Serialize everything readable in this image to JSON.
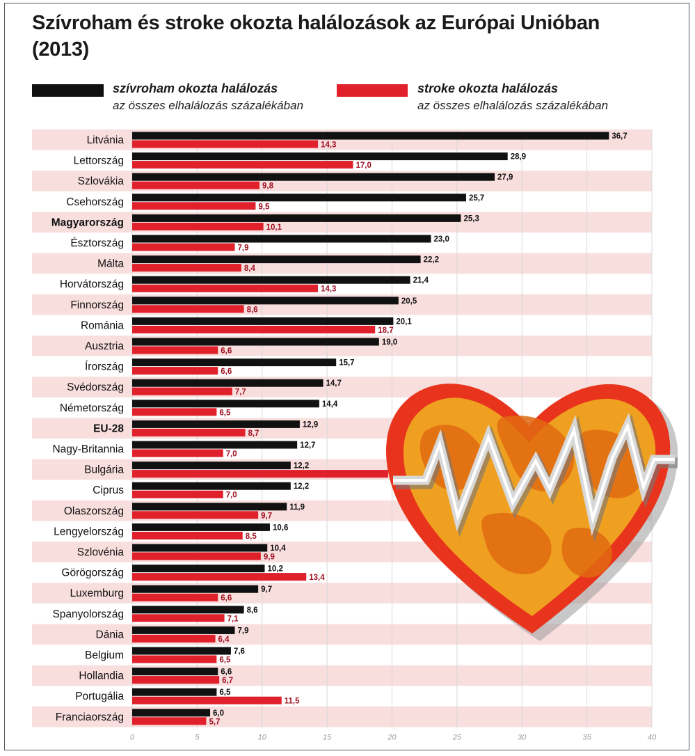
{
  "title": "Szívroham és stroke okozta halálozások az Európai Unióban (2013)",
  "legend": {
    "heart_main": "szívroham okozta halálozás",
    "heart_sub": "az összes elhalálozás százalékában",
    "stroke_main": "stroke okozta halálozás",
    "stroke_sub": "az összes elhalálozás százalékában"
  },
  "colors": {
    "heart": "#111111",
    "stroke": "#e0202a",
    "band": "#f9dede",
    "stroke_label": "#a01020"
  },
  "chart_data": {
    "type": "bar",
    "orientation": "horizontal",
    "title": "Szívroham és stroke okozta halálozások az Európai Unióban (2013)",
    "categories": [
      "Litvánia",
      "Lettország",
      "Szlovákia",
      "Csehország",
      "Magyarország",
      "Észtország",
      "Málta",
      "Horvátország",
      "Finnország",
      "Románia",
      "Ausztria",
      "Írország",
      "Svédország",
      "Németország",
      "EU-28",
      "Nagy-Britannia",
      "Bulgária",
      "Ciprus",
      "Olaszország",
      "Lengyelország",
      "Szlovénia",
      "Görögország",
      "Luxemburg",
      "Spanyolország",
      "Dánia",
      "Belgium",
      "Hollandia",
      "Portugália",
      "Franciaország"
    ],
    "bold_categories": [
      "Magyarország",
      "EU-28"
    ],
    "series": [
      {
        "name": "szívroham okozta halálozás",
        "values": [
          36.7,
          28.9,
          27.9,
          25.7,
          25.3,
          23.0,
          22.2,
          21.4,
          20.5,
          20.1,
          19.0,
          15.7,
          14.7,
          14.4,
          12.9,
          12.7,
          12.2,
          12.2,
          11.9,
          10.6,
          10.4,
          10.2,
          9.7,
          8.6,
          7.9,
          7.6,
          6.6,
          6.5,
          6.0
        ],
        "labels": [
          "36,7",
          "28,9",
          "27,9",
          "25,7",
          "25,3",
          "23,0",
          "22,2",
          "21,4",
          "20,5",
          "20,1",
          "19,0",
          "15,7",
          "14,7",
          "14,4",
          "12,9",
          "12,7",
          "12,2",
          "12,2",
          "11,9",
          "10,6",
          "10,4",
          "10,2",
          "9,7",
          "8,6",
          "7,9",
          "7,6",
          "6,6",
          "6,5",
          "6,0"
        ]
      },
      {
        "name": "stroke okozta halálozás",
        "values": [
          14.3,
          17.0,
          9.8,
          9.5,
          10.1,
          7.9,
          8.4,
          14.3,
          8.6,
          18.7,
          6.6,
          6.6,
          7.7,
          6.5,
          8.7,
          7.0,
          19.7,
          7.0,
          9.7,
          8.5,
          9.9,
          13.4,
          6.6,
          7.1,
          6.4,
          6.5,
          6.7,
          11.5,
          5.7
        ],
        "labels": [
          "14,3",
          "17,0",
          "9,8",
          "9,5",
          "10,1",
          "7,9",
          "8,4",
          "14,3",
          "8,6",
          "18,7",
          "6,6",
          "6,6",
          "7,7",
          "6,5",
          "8,7",
          "7,0",
          "19,7",
          "7,0",
          "9,7",
          "8,5",
          "9,9",
          "13,4",
          "6,6",
          "7,1",
          "6,4",
          "6,5",
          "6,7",
          "11,5",
          "5,7"
        ]
      }
    ],
    "xlim": [
      0,
      40
    ],
    "xticks": [
      "0",
      "5",
      "10",
      "15",
      "20",
      "25",
      "30",
      "35",
      "40"
    ],
    "grid": true
  }
}
